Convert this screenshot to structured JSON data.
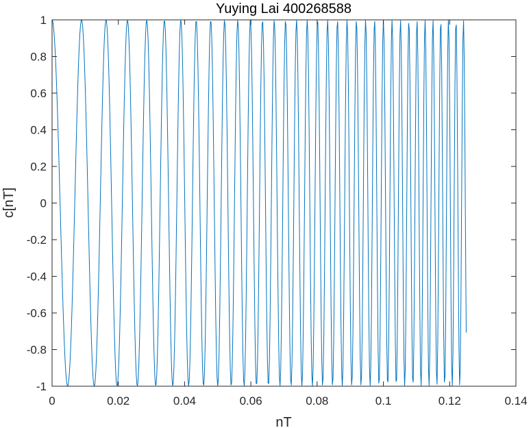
{
  "chart_data": {
    "type": "line",
    "title": "Yuying Lai 400268588",
    "xlabel": "nT",
    "ylabel": "c[nT]",
    "xlim": [
      0,
      0.14
    ],
    "ylim": [
      -1,
      1
    ],
    "xticks": [
      0,
      0.02,
      0.04,
      0.06,
      0.08,
      0.1,
      0.12,
      0.14
    ],
    "xtick_labels": [
      "0",
      "0.02",
      "0.04",
      "0.06",
      "0.08",
      "0.1",
      "0.12",
      "0.14"
    ],
    "yticks": [
      -1,
      -0.8,
      -0.6,
      -0.4,
      -0.2,
      0,
      0.2,
      0.4,
      0.6,
      0.8,
      1
    ],
    "ytick_labels": [
      "-1",
      "-0.8",
      "-0.6",
      "-0.4",
      "-0.2",
      "0",
      "0.2",
      "0.4",
      "0.6",
      "0.8",
      "1"
    ],
    "grid": false,
    "series": [
      {
        "function": "cos(2*pi*(f0*t + 0.5*k*t^2))",
        "f0": 100,
        "chirp_rate": 2800,
        "t_start": 0,
        "t_end": 0.125,
        "sample_step": 0.0002,
        "color": "#0072BD"
      }
    ]
  },
  "colors": {
    "line": "#0072BD",
    "axes": "#262626",
    "background": "#ffffff"
  }
}
